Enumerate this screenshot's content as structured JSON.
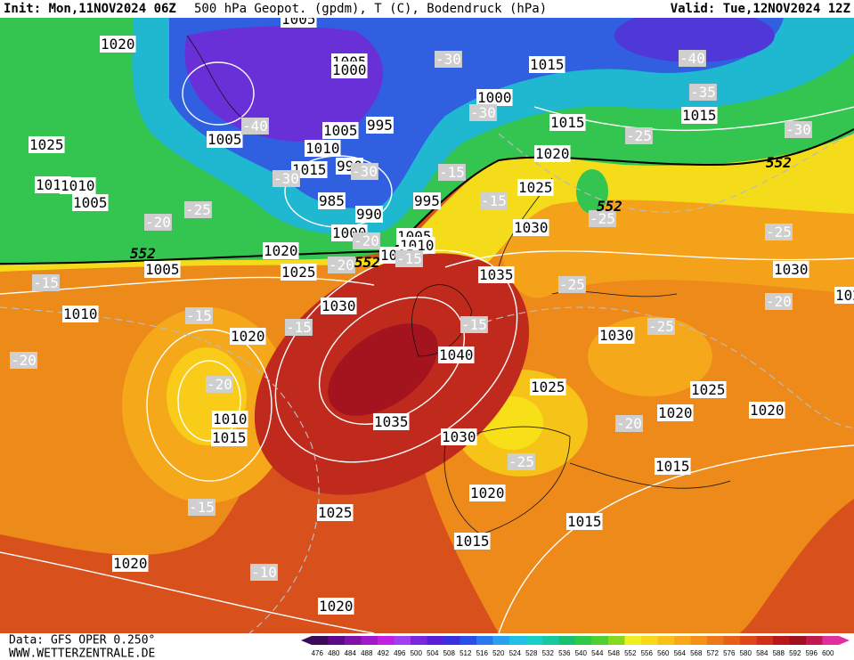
{
  "header": {
    "init": "Init: Mon,11NOV2024 06Z",
    "title": "500 hPa Geopot. (gpdm), T (C), Bodendruck (hPa)",
    "valid": "Valid: Tue,12NOV2024 12Z"
  },
  "map": {
    "isobar_labels": [
      1020,
      1005,
      1005,
      1000,
      1015,
      1000,
      1025,
      1005,
      1005,
      1010,
      995,
      1015,
      990,
      985,
      990,
      995,
      1000,
      1005,
      1010,
      1015,
      1015,
      1010,
      1005,
      1020,
      1005,
      1025,
      1035,
      1015,
      1020,
      1025,
      1030,
      1030,
      1020,
      1010,
      1030,
      1020,
      1030,
      1040,
      1010,
      1015,
      1035,
      1025,
      1025,
      1020,
      1020,
      1030,
      1015,
      1020,
      1025,
      1015,
      1015,
      1020,
      1020,
      1015
    ],
    "temperature_labels": [
      -30,
      -40,
      -35,
      -40,
      -30,
      -30,
      -25,
      -15,
      -30,
      -30,
      -25,
      -15,
      -20,
      -25,
      -25,
      -15,
      -20,
      -20,
      -15,
      -25,
      -20,
      -15,
      -15,
      -15,
      -25,
      -20,
      -20,
      -25,
      -15,
      -10,
      -20
    ],
    "height_labels": [
      552,
      552,
      552,
      552
    ]
  },
  "footer": {
    "data": "Data: GFS OPER 0.250°",
    "site": "WWW.WETTERZENTRALE.DE"
  },
  "colorbar": {
    "levels": [
      476,
      480,
      484,
      488,
      492,
      496,
      500,
      504,
      508,
      512,
      516,
      520,
      524,
      528,
      532,
      536,
      540,
      544,
      548,
      552,
      556,
      560,
      564,
      568,
      572,
      576,
      580,
      584,
      588,
      592,
      596,
      600
    ],
    "colors": [
      "#3c0a5a",
      "#5c0a8a",
      "#8010a8",
      "#a018c8",
      "#c020e0",
      "#a040f0",
      "#7a28e0",
      "#5a20d8",
      "#3a30e0",
      "#2850e8",
      "#2a78f0",
      "#2aa0f0",
      "#20c0e8",
      "#18d0c8",
      "#18c8a0",
      "#18c070",
      "#30c848",
      "#50d030",
      "#88d820",
      "#f0f020",
      "#f8d818",
      "#f8c018",
      "#f8a818",
      "#f49018",
      "#ec7818",
      "#e86018",
      "#e04818",
      "#d03018",
      "#b81818",
      "#a01020",
      "#c01850",
      "#e030a0"
    ]
  }
}
